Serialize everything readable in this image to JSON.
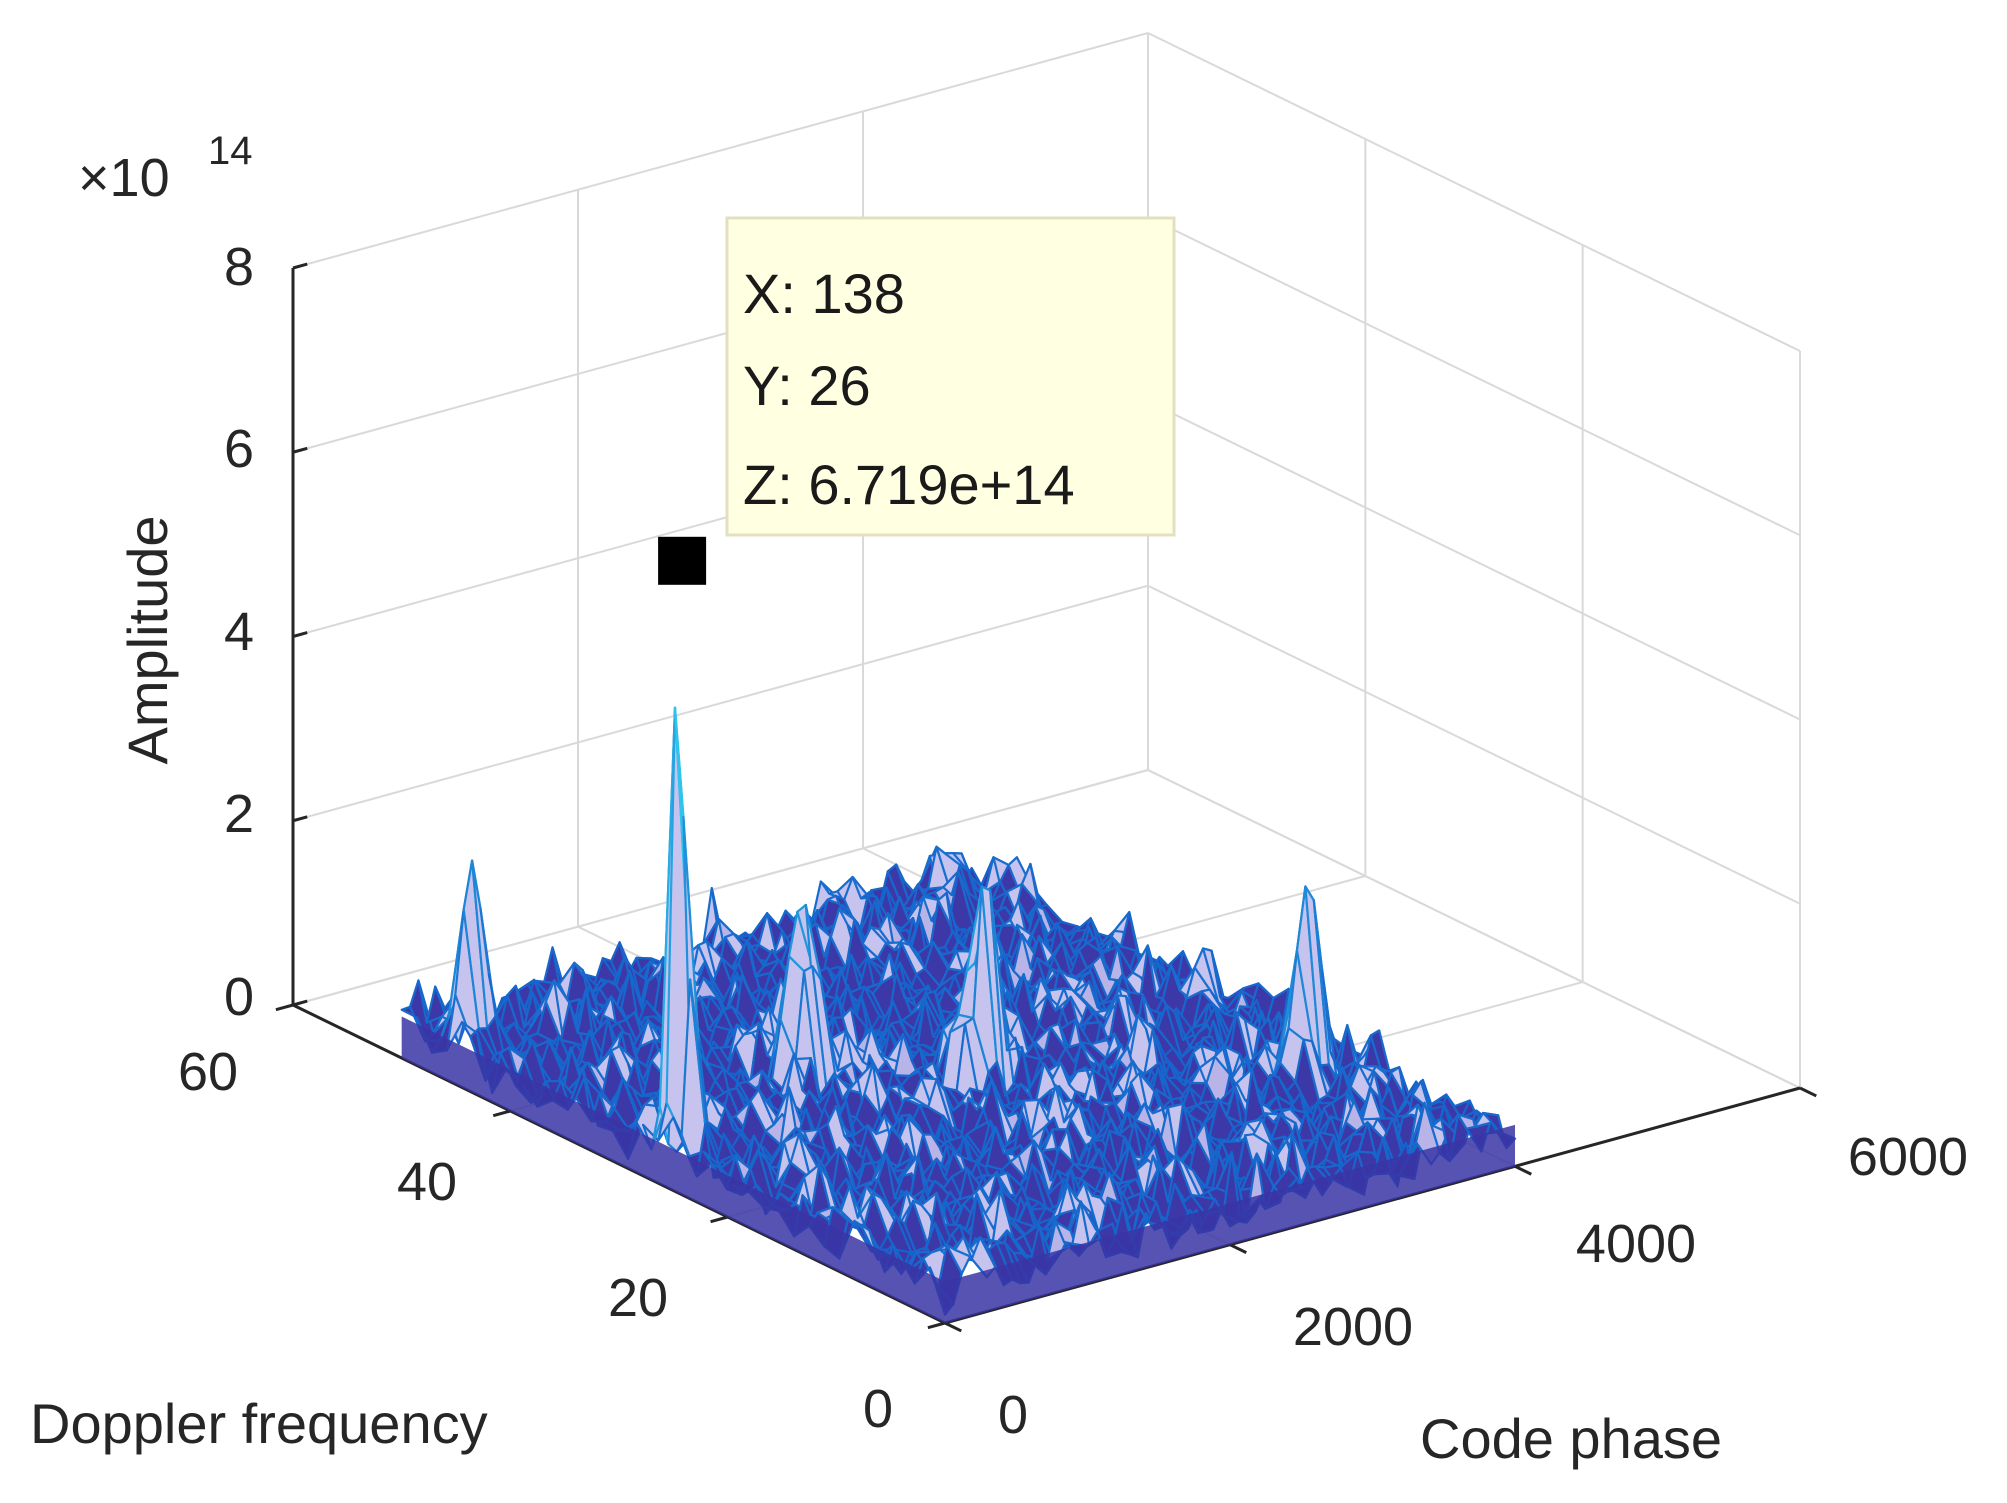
{
  "chart_data": {
    "type": "surface3d",
    "title": "",
    "xlabel": "Code phase",
    "ylabel": "Doppler frequency",
    "zlabel": "Amplitude",
    "x_range": [
      0,
      6000
    ],
    "y_range": [
      0,
      60
    ],
    "z_range": [
      0,
      8
    ],
    "x_ticks": [
      "0",
      "2000",
      "4000",
      "6000"
    ],
    "y_ticks": [
      "0",
      "20",
      "40",
      "60"
    ],
    "z_ticks": [
      "0",
      "2",
      "4",
      "6",
      "8"
    ],
    "z_multiplier_base": "×10",
    "z_multiplier_exp": "14",
    "grid": true,
    "colormap": "parula",
    "surface_extent": {
      "code_phase": [
        0,
        4000
      ],
      "doppler": [
        0,
        50
      ]
    },
    "peak": {
      "x": 138,
      "y": 26,
      "z": 671900000000000.0
    },
    "secondary_peaks": [
      {
        "code_phase": 180,
        "doppler": 46,
        "amplitude_e14": 2.1
      },
      {
        "code_phase": 1300,
        "doppler": 30,
        "amplitude_e14": 2.6
      },
      {
        "code_phase": 2100,
        "doppler": 24,
        "amplitude_e14": 2.5
      },
      {
        "code_phase": 3600,
        "doppler": 14,
        "amplitude_e14": 2.3
      }
    ],
    "noise_level_e14": 0.6,
    "datatip": {
      "line1": "X: 138",
      "line2": "Y: 26",
      "line3": "Z: 6.719e+14"
    }
  },
  "colors": {
    "grid": "#d9d9d9",
    "axis": "#262626",
    "tip_background": "#ffffe1",
    "tip_border": "#e3e0c2",
    "marker": "#000000"
  }
}
